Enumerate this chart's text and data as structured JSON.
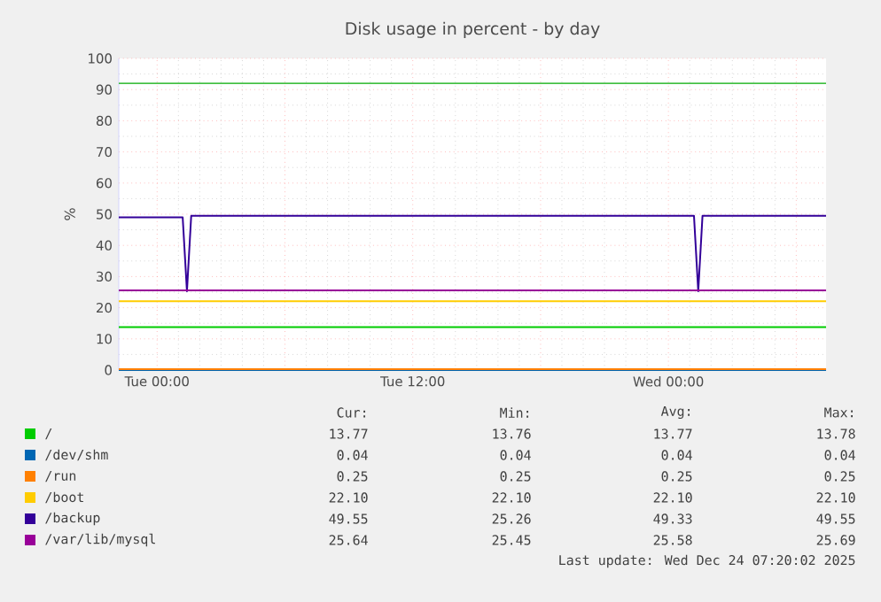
{
  "chart_data": {
    "type": "line",
    "title": "Disk usage in percent - by day",
    "ylabel": "%",
    "xlim": [
      "2025-12-22T22:12",
      "2025-12-24T07:24"
    ],
    "ylim": [
      0,
      100
    ],
    "xticks": [
      {
        "value": "2025-12-23T00:00",
        "label": "Tue 00:00"
      },
      {
        "value": "2025-12-23T06:00",
        "label": null
      },
      {
        "value": "2025-12-23T12:00",
        "label": "Tue 12:00"
      },
      {
        "value": "2025-12-23T18:00",
        "label": null
      },
      {
        "value": "2025-12-24T00:00",
        "label": "Wed 00:00"
      },
      {
        "value": "2025-12-24T06:00",
        "label": null
      }
    ],
    "yticks": [
      0,
      10,
      20,
      30,
      40,
      50,
      60,
      70,
      80,
      90,
      100
    ],
    "grid": true,
    "legend": "bottom",
    "ref_lines": [
      {
        "axis": "y",
        "value": 92,
        "color": "#00aa00"
      }
    ],
    "series": [
      {
        "name": "/",
        "color": "#00cc00",
        "x": [
          "2025-12-22T22:12",
          "2025-12-24T07:24"
        ],
        "values": [
          13.8,
          13.8
        ]
      },
      {
        "name": "/dev/shm",
        "color": "#0066b3",
        "x": [
          "2025-12-22T22:12",
          "2025-12-24T07:24"
        ],
        "values": [
          0.0,
          0.0
        ]
      },
      {
        "name": "/run",
        "color": "#ff8000",
        "x": [
          "2025-12-22T22:12",
          "2025-12-24T07:24"
        ],
        "values": [
          0.3,
          0.3
        ]
      },
      {
        "name": "/boot",
        "color": "#ffcc00",
        "x": [
          "2025-12-22T22:12",
          "2025-12-24T07:24"
        ],
        "values": [
          22.1,
          22.1
        ]
      },
      {
        "name": "/backup",
        "color": "#330099",
        "x": [
          "2025-12-22T22:12",
          "2025-12-23T01:12",
          "2025-12-23T01:24",
          "2025-12-23T01:36",
          "2025-12-24T01:12",
          "2025-12-24T01:24",
          "2025-12-24T01:36",
          "2025-12-24T07:24"
        ],
        "values": [
          49.0,
          49.0,
          25.3,
          49.5,
          49.5,
          25.3,
          49.5,
          49.5
        ]
      },
      {
        "name": "/var/lib/mysql",
        "color": "#990099",
        "x": [
          "2025-12-22T22:12",
          "2025-12-24T07:24"
        ],
        "values": [
          25.6,
          25.6
        ]
      }
    ],
    "annotations": [
      "Cur:",
      "Min:",
      "Avg:",
      "Max:",
      "13.77",
      "13.76",
      "13.77",
      "13.78",
      "0.04",
      "0.04",
      "0.04",
      "0.04",
      "0.25",
      "0.25",
      "0.25",
      "0.25",
      "22.10",
      "22.10",
      "22.10",
      "22.10",
      "49.55",
      "25.26",
      "49.33",
      "49.55",
      "25.64",
      "25.45",
      "25.58",
      "25.69",
      "Last update: Wed Dec 24 07:20:02 2025"
    ]
  }
}
